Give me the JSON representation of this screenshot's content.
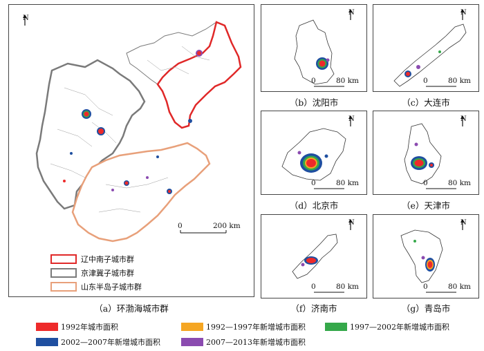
{
  "north_label": "N",
  "panels": {
    "a": {
      "caption": "（a）环渤海城市群",
      "scale_start": "0",
      "scale_end": "200 km"
    },
    "b": {
      "caption": "（b）沈阳市",
      "scale_start": "0",
      "scale_end": "80 km"
    },
    "c": {
      "caption": "（c）大连市",
      "scale_start": "0",
      "scale_end": "80 km"
    },
    "d": {
      "caption": "（d）北京市",
      "scale_start": "0",
      "scale_end": "80 km"
    },
    "e": {
      "caption": "（e）天津市",
      "scale_start": "0",
      "scale_end": "80 km"
    },
    "f": {
      "caption": "（f）济南市",
      "scale_start": "0",
      "scale_end": "80 km"
    },
    "g": {
      "caption": "（g）青岛市",
      "scale_start": "0",
      "scale_end": "80 km"
    }
  },
  "groups": [
    {
      "label": "辽中南子城市群",
      "color": "#e02828"
    },
    {
      "label": "京津冀子城市群",
      "color": "#7a7a7a"
    },
    {
      "label": "山东半岛子城市群",
      "color": "#e8a07a"
    }
  ],
  "legend": [
    {
      "label": "1992年城市面积",
      "color": "#ee2a2a"
    },
    {
      "label": "1992—1997年新增城市面积",
      "color": "#f5a623"
    },
    {
      "label": "1997—2002年新增城市面积",
      "color": "#35a84a"
    },
    {
      "label": "2002—2007年新增城市面积",
      "color": "#1f4fa0"
    },
    {
      "label": "2007—2013年新增城市面积",
      "color": "#8b4bb0"
    }
  ]
}
